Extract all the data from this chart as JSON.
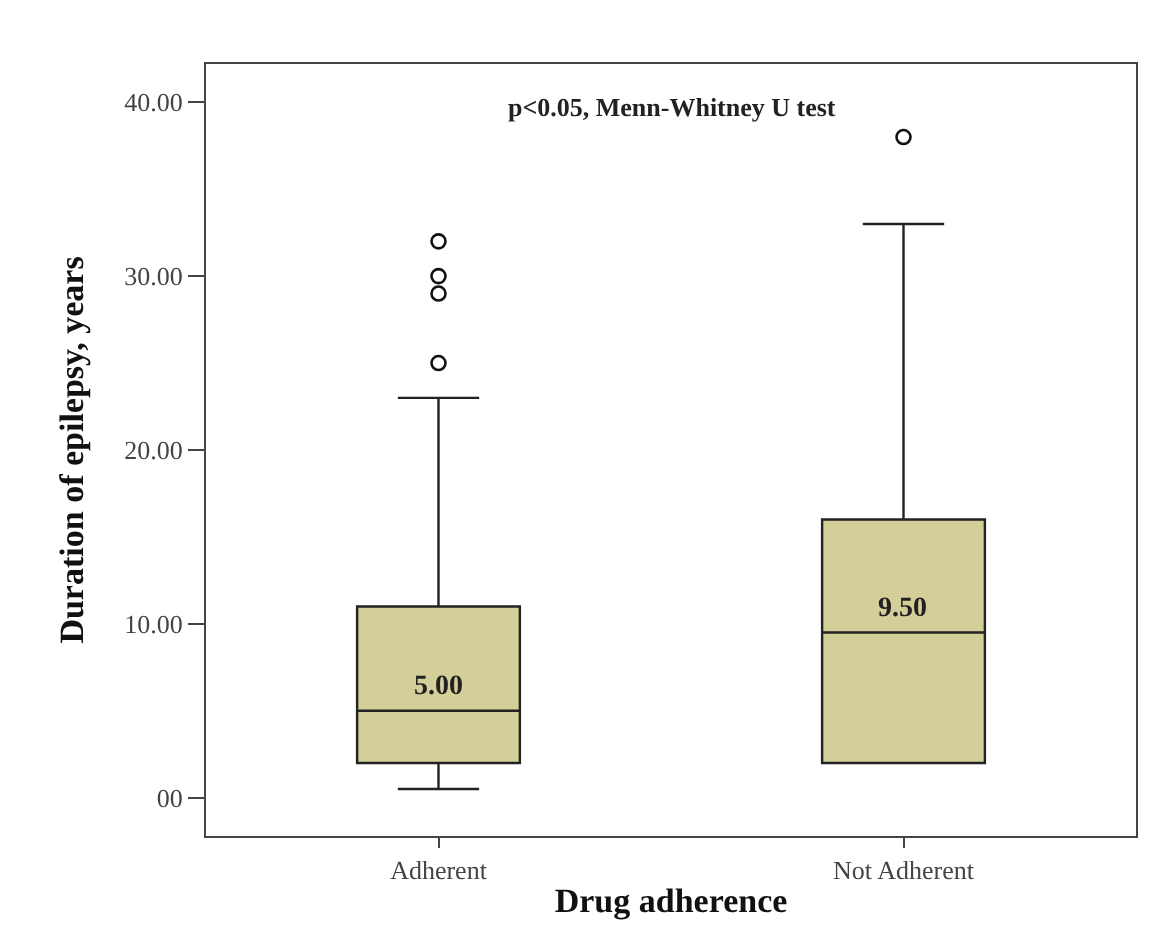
{
  "chart_data": {
    "type": "box",
    "xlabel": "Drug adherence",
    "ylabel": "Duration of epilepsy, years",
    "annotations": [
      "p<0.05, Menn-Whitney U test",
      {
        "text": "5.00",
        "x": "Adherent",
        "y": 5
      },
      {
        "text": "9.50",
        "x": "Not Adherent",
        "y": 9.5
      }
    ],
    "categories": [
      "Adherent",
      "Not Adherent"
    ],
    "color": "#d4cf98",
    "boxes": [
      {
        "low": 0.5,
        "q1": 2,
        "median": 5,
        "q3": 11,
        "high": 23,
        "outliers": [
          25,
          29,
          30,
          32
        ]
      },
      {
        "low": 2,
        "q1": 2,
        "median": 9.5,
        "q3": 16,
        "high": 33,
        "outliers": [
          38
        ]
      }
    ],
    "ylim": [
      -2.2,
      42.2
    ],
    "yticks": [
      {
        "value": 0,
        "label": "00"
      },
      {
        "value": 10,
        "label": "10.00"
      },
      {
        "value": 20,
        "label": "20.00"
      },
      {
        "value": 30,
        "label": "30.00"
      },
      {
        "value": 40,
        "label": "40.00"
      }
    ],
    "marker": "circle"
  }
}
